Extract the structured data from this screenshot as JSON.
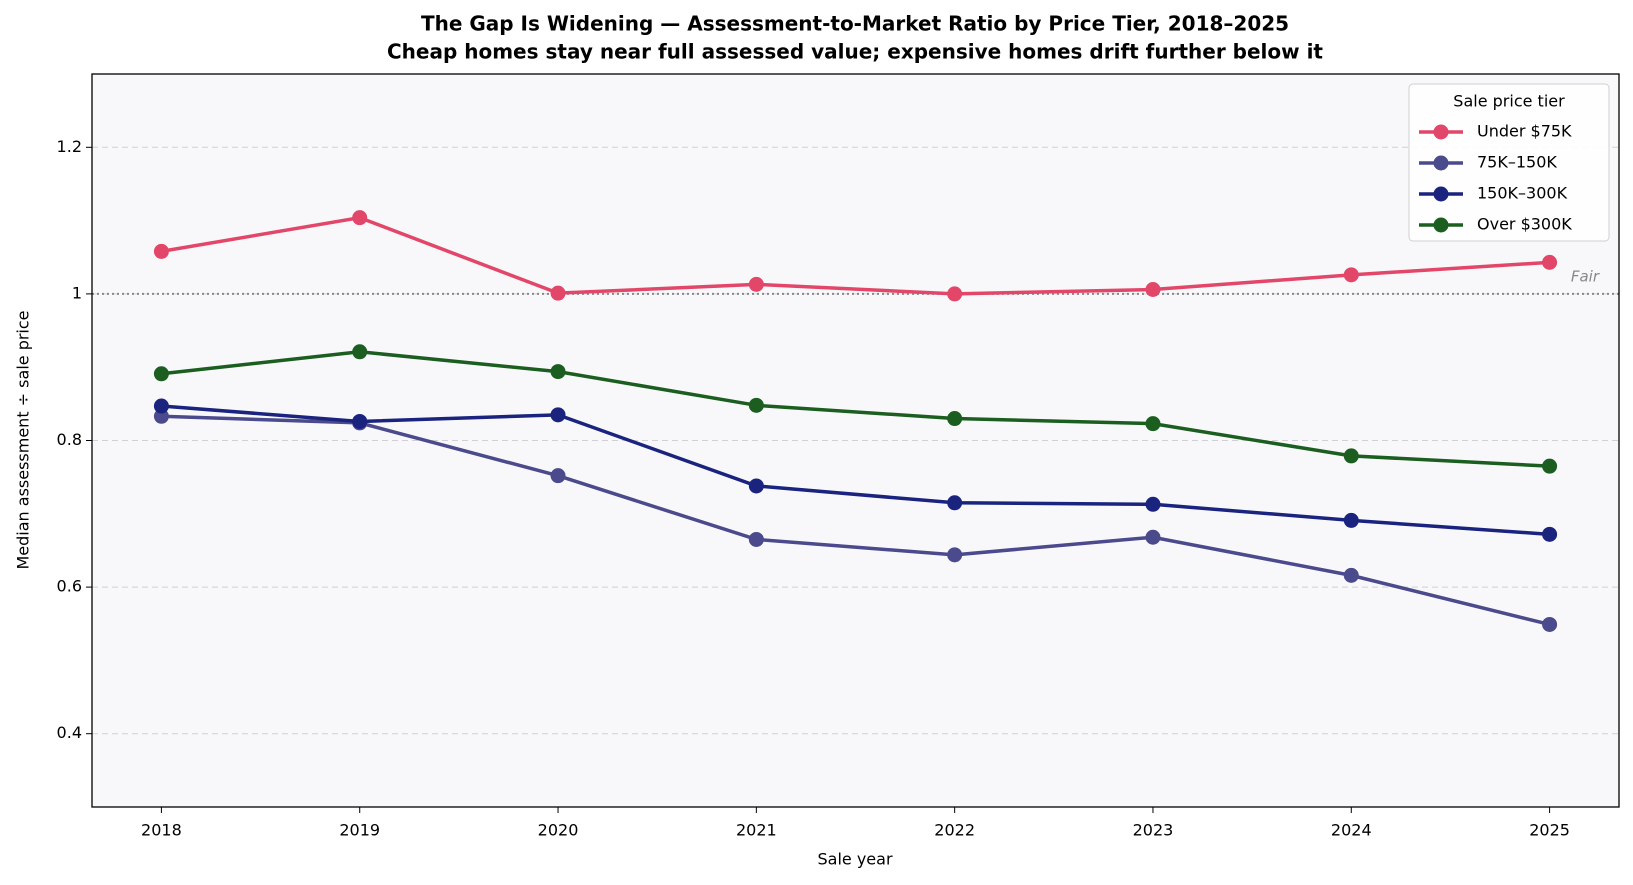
{
  "chart_data": {
    "type": "line",
    "title": "The Gap Is Widening — Assessment-to-Market Ratio by Price Tier, 2018–2025",
    "subtitle": "Cheap homes stay near full assessed value; expensive homes drift further below it",
    "x_label": "Sale year",
    "y_label": "Median assessment ÷ sale price",
    "x": [
      2018,
      2019,
      2020,
      2021,
      2022,
      2023,
      2024,
      2025
    ],
    "xlim": [
      2017.65,
      2025.35
    ],
    "xticks": [
      2018,
      2019,
      2020,
      2021,
      2022,
      2023,
      2024,
      2025
    ],
    "ylim": [
      0.3,
      1.3
    ],
    "yticks": [
      0.4,
      0.6,
      0.8,
      1.0,
      1.2
    ],
    "grid": true,
    "reference_line": {
      "value": 1.0,
      "label": "Fair"
    },
    "legend_title": "Sale price tier",
    "legend": "upper right",
    "series": [
      {
        "name": "Under $75K",
        "color": "#e2476a",
        "values": [
          1.058,
          1.104,
          1.001,
          1.013,
          1.0,
          1.006,
          1.026,
          1.043
        ]
      },
      {
        "name": "75K–150K",
        "color": "#4a4a8c",
        "values": [
          0.833,
          0.824,
          0.752,
          0.665,
          0.644,
          0.668,
          0.616,
          0.549
        ]
      },
      {
        "name": "150K–300K",
        "color": "#1a237e",
        "values": [
          0.847,
          0.826,
          0.835,
          0.738,
          0.715,
          0.713,
          0.691,
          0.672
        ]
      },
      {
        "name": "Over $300K",
        "color": "#1b5e20",
        "values": [
          0.891,
          0.921,
          0.894,
          0.848,
          0.83,
          0.823,
          0.779,
          0.765
        ]
      }
    ]
  }
}
